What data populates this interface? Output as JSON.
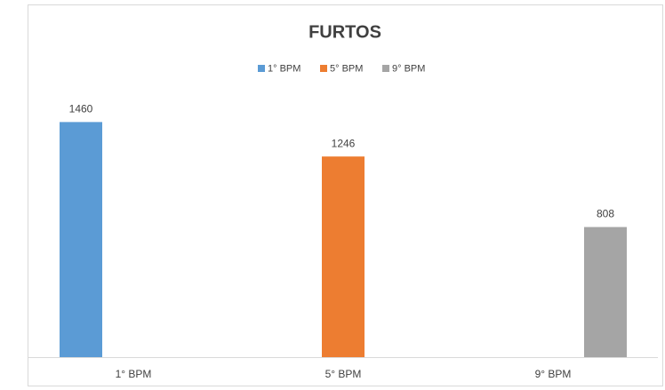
{
  "chart_data": {
    "type": "bar",
    "title": "FURTOS",
    "categories": [
      "1° BPM",
      "5° BPM",
      "9° BPM"
    ],
    "series": [
      {
        "name": "1° BPM",
        "color": "#5b9bd5",
        "values": [
          1460,
          null,
          null
        ]
      },
      {
        "name": "5° BPM",
        "color": "#ed7d31",
        "values": [
          null,
          1246,
          null
        ]
      },
      {
        "name": "9° BPM",
        "color": "#a5a5a5",
        "values": [
          null,
          null,
          808
        ]
      }
    ],
    "ylim": [
      0,
      1600
    ],
    "legend": "top"
  }
}
